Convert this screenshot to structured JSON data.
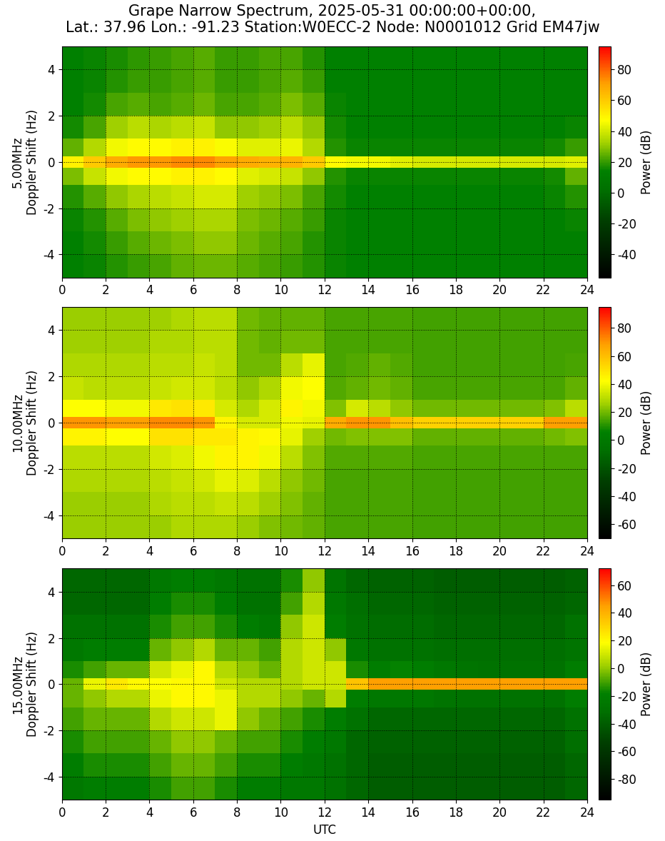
{
  "title": "Grape Narrow Spectrum, 2025-05-31 00:00:00+00:00,\nLat.: 37.96 Lon.: -91.23 Station:W0ECC-2 Node: N0001012 Grid EM47jw",
  "chart_data": [
    {
      "type": "heatmap",
      "ylabel": "5.00MHz\nDoppler Shift (Hz)",
      "xlim": [
        0,
        24
      ],
      "xticks": [
        0,
        2,
        4,
        6,
        8,
        10,
        12,
        14,
        16,
        18,
        20,
        22,
        24
      ],
      "ylim": [
        -5,
        5
      ],
      "yticks": [
        -4,
        -2,
        0,
        2,
        4
      ],
      "grid": true,
      "x_edges": [
        0,
        1,
        2,
        3,
        4,
        5,
        6,
        7,
        8,
        9,
        10,
        11,
        12,
        13,
        14,
        15,
        16,
        17,
        18,
        19,
        20,
        21,
        22,
        23,
        24
      ],
      "y_edges": [
        -5,
        -4,
        -3,
        -2,
        -1,
        -0.25,
        0.25,
        1,
        2,
        3,
        4,
        5
      ],
      "cells": [
        [
          14,
          15,
          18,
          20,
          22,
          25,
          26,
          26,
          24,
          22,
          20,
          18,
          15,
          14,
          14,
          14,
          14,
          14,
          14,
          14,
          14,
          14,
          14,
          14
        ],
        [
          14,
          16,
          20,
          24,
          26,
          28,
          30,
          30,
          26,
          24,
          22,
          18,
          15,
          14,
          14,
          14,
          14,
          14,
          14,
          14,
          14,
          14,
          14,
          14
        ],
        [
          15,
          18,
          24,
          28,
          30,
          32,
          34,
          34,
          28,
          26,
          24,
          20,
          15,
          14,
          14,
          14,
          14,
          14,
          14,
          14,
          14,
          14,
          14,
          15
        ],
        [
          18,
          24,
          30,
          34,
          36,
          38,
          40,
          40,
          32,
          30,
          28,
          22,
          16,
          14,
          14,
          14,
          14,
          14,
          14,
          14,
          14,
          14,
          15,
          18
        ],
        [
          28,
          38,
          45,
          48,
          48,
          50,
          50,
          48,
          42,
          40,
          38,
          30,
          18,
          15,
          15,
          15,
          15,
          15,
          15,
          15,
          15,
          15,
          16,
          25
        ],
        [
          50,
          60,
          68,
          72,
          72,
          74,
          74,
          70,
          68,
          66,
          66,
          60,
          48,
          45,
          45,
          42,
          40,
          40,
          40,
          40,
          40,
          40,
          40,
          42
        ],
        [
          25,
          35,
          45,
          48,
          48,
          50,
          50,
          46,
          42,
          42,
          44,
          35,
          18,
          15,
          15,
          15,
          15,
          15,
          15,
          15,
          15,
          15,
          16,
          20
        ],
        [
          16,
          22,
          32,
          36,
          34,
          36,
          38,
          30,
          30,
          32,
          36,
          30,
          16,
          14,
          14,
          14,
          14,
          14,
          14,
          14,
          14,
          14,
          14,
          15
        ],
        [
          14,
          16,
          22,
          24,
          22,
          24,
          26,
          22,
          22,
          24,
          28,
          24,
          15,
          14,
          14,
          14,
          14,
          14,
          14,
          14,
          14,
          14,
          14,
          14
        ],
        [
          14,
          15,
          18,
          20,
          20,
          22,
          24,
          20,
          20,
          22,
          24,
          20,
          14,
          14,
          14,
          14,
          14,
          14,
          14,
          14,
          14,
          14,
          14,
          14
        ],
        [
          14,
          15,
          17,
          19,
          20,
          22,
          24,
          20,
          20,
          22,
          22,
          18,
          14,
          14,
          14,
          14,
          14,
          14,
          14,
          14,
          14,
          14,
          14,
          14
        ]
      ],
      "colorbar_range": [
        -55,
        95
      ],
      "colorbar_ticks": [
        -40,
        -20,
        0,
        20,
        40,
        60,
        80
      ],
      "colorbar_label": "Power (dB)"
    },
    {
      "type": "heatmap",
      "ylabel": "10.00MHz\nDoppler Shift (Hz)",
      "xlim": [
        0,
        24
      ],
      "xticks": [
        0,
        2,
        4,
        6,
        8,
        10,
        12,
        14,
        16,
        18,
        20,
        22,
        24
      ],
      "ylim": [
        -5,
        5
      ],
      "yticks": [
        -4,
        -2,
        0,
        2,
        4
      ],
      "grid": true,
      "x_edges": [
        0,
        1,
        2,
        3,
        4,
        5,
        6,
        7,
        8,
        9,
        10,
        11,
        12,
        13,
        14,
        15,
        16,
        17,
        18,
        19,
        20,
        21,
        22,
        23,
        24
      ],
      "y_edges": [
        -5,
        -4,
        -3,
        -2,
        -1,
        -0.25,
        0.25,
        1,
        2,
        3,
        4,
        5
      ],
      "cells": [
        [
          25,
          25,
          25,
          25,
          25,
          28,
          28,
          28,
          25,
          22,
          20,
          18,
          15,
          15,
          15,
          15,
          14,
          14,
          14,
          14,
          14,
          14,
          14,
          14
        ],
        [
          25,
          25,
          25,
          25,
          28,
          30,
          30,
          32,
          30,
          26,
          22,
          18,
          15,
          15,
          15,
          15,
          14,
          14,
          14,
          14,
          14,
          14,
          14,
          14
        ],
        [
          28,
          28,
          28,
          28,
          30,
          32,
          34,
          38,
          36,
          30,
          24,
          20,
          15,
          15,
          15,
          15,
          14,
          14,
          14,
          14,
          14,
          14,
          14,
          14
        ],
        [
          30,
          30,
          30,
          30,
          34,
          36,
          40,
          45,
          45,
          40,
          30,
          22,
          16,
          16,
          16,
          16,
          15,
          15,
          15,
          15,
          15,
          15,
          15,
          15
        ],
        [
          45,
          45,
          42,
          42,
          50,
          50,
          48,
          48,
          45,
          44,
          38,
          26,
          20,
          22,
          22,
          22,
          18,
          18,
          18,
          18,
          18,
          18,
          20,
          22
        ],
        [
          70,
          70,
          68,
          68,
          72,
          72,
          70,
          45,
          35,
          35,
          40,
          38,
          65,
          70,
          70,
          60,
          55,
          55,
          55,
          55,
          55,
          55,
          68,
          68
        ],
        [
          42,
          42,
          40,
          40,
          48,
          50,
          48,
          35,
          28,
          35,
          45,
          40,
          22,
          35,
          30,
          24,
          20,
          20,
          20,
          20,
          20,
          20,
          22,
          30
        ],
        [
          32,
          30,
          30,
          30,
          32,
          34,
          34,
          30,
          24,
          28,
          40,
          42,
          16,
          18,
          20,
          18,
          15,
          15,
          15,
          15,
          15,
          15,
          15,
          18
        ],
        [
          28,
          28,
          28,
          28,
          30,
          30,
          32,
          30,
          20,
          20,
          30,
          38,
          15,
          16,
          18,
          16,
          14,
          14,
          14,
          14,
          14,
          14,
          14,
          15
        ],
        [
          26,
          26,
          26,
          26,
          28,
          28,
          30,
          30,
          20,
          18,
          20,
          20,
          15,
          15,
          15,
          15,
          14,
          14,
          14,
          14,
          14,
          14,
          14,
          14
        ],
        [
          25,
          25,
          25,
          25,
          26,
          28,
          30,
          30,
          20,
          18,
          18,
          18,
          15,
          15,
          15,
          15,
          14,
          14,
          14,
          14,
          14,
          14,
          14,
          14
        ]
      ],
      "colorbar_range": [
        -70,
        95
      ],
      "colorbar_ticks": [
        -60,
        -40,
        -20,
        0,
        20,
        40,
        60,
        80
      ],
      "colorbar_label": "Power (dB)"
    },
    {
      "type": "heatmap",
      "ylabel": "15.00MHz\nDoppler Shift (Hz)",
      "xlabel": "UTC",
      "xlim": [
        0,
        24
      ],
      "xticks": [
        0,
        2,
        4,
        6,
        8,
        10,
        12,
        14,
        16,
        18,
        20,
        22,
        24
      ],
      "ylim": [
        -5,
        5
      ],
      "yticks": [
        -4,
        -2,
        0,
        2,
        4
      ],
      "grid": true,
      "x_edges": [
        0,
        1,
        2,
        3,
        4,
        5,
        6,
        7,
        8,
        9,
        10,
        11,
        12,
        13,
        14,
        15,
        16,
        17,
        18,
        19,
        20,
        21,
        22,
        23,
        24
      ],
      "y_edges": [
        -5,
        -4,
        -3,
        -2,
        -1,
        -0.25,
        0.25,
        1,
        2,
        3,
        4,
        5
      ],
      "cells": [
        [
          -25,
          -20,
          -20,
          -20,
          -15,
          -10,
          -10,
          -15,
          -20,
          -20,
          -25,
          -25,
          -30,
          -35,
          -40,
          -40,
          -40,
          -40,
          -40,
          -40,
          -40,
          -40,
          -40,
          -35
        ],
        [
          -20,
          -15,
          -15,
          -15,
          -10,
          -5,
          -5,
          -10,
          -15,
          -15,
          -20,
          -25,
          -30,
          -35,
          -40,
          -40,
          -40,
          -40,
          -40,
          -40,
          -40,
          -40,
          -40,
          -35
        ],
        [
          -15,
          -10,
          -10,
          -10,
          -5,
          0,
          0,
          -5,
          -10,
          -10,
          -15,
          -20,
          -25,
          -35,
          -38,
          -38,
          -38,
          -38,
          -38,
          -38,
          -38,
          -38,
          -38,
          -32
        ],
        [
          -10,
          -5,
          -5,
          -5,
          5,
          10,
          10,
          15,
          0,
          -5,
          -10,
          -15,
          -20,
          -30,
          -35,
          -35,
          -35,
          -35,
          -35,
          -35,
          -35,
          -35,
          -35,
          -30
        ],
        [
          -5,
          0,
          5,
          5,
          15,
          20,
          20,
          15,
          5,
          5,
          0,
          -5,
          5,
          -20,
          -25,
          -25,
          -25,
          -28,
          -30,
          -30,
          -30,
          -30,
          -30,
          -20
        ],
        [
          -5,
          15,
          25,
          20,
          18,
          20,
          20,
          10,
          5,
          5,
          5,
          10,
          10,
          35,
          45,
          45,
          45,
          45,
          45,
          45,
          45,
          45,
          45,
          45
        ],
        [
          -15,
          -10,
          -5,
          -5,
          10,
          15,
          20,
          5,
          0,
          -5,
          5,
          10,
          10,
          -15,
          -20,
          -18,
          -20,
          -25,
          -28,
          -30,
          -30,
          -30,
          -30,
          -20
        ],
        [
          -25,
          -20,
          -20,
          -20,
          -5,
          0,
          5,
          -5,
          -5,
          -10,
          5,
          10,
          0,
          -25,
          -30,
          -30,
          -30,
          -32,
          -32,
          -32,
          -32,
          -32,
          -32,
          -28
        ],
        [
          -30,
          -30,
          -30,
          -30,
          -15,
          -10,
          -10,
          -15,
          -20,
          -25,
          0,
          10,
          -20,
          -30,
          -33,
          -33,
          -33,
          -35,
          -35,
          -35,
          -35,
          -35,
          -35,
          -30
        ],
        [
          -35,
          -35,
          -35,
          -35,
          -20,
          -15,
          -15,
          -20,
          -30,
          -30,
          -10,
          5,
          -25,
          -32,
          -35,
          -35,
          -35,
          -38,
          -38,
          -38,
          -38,
          -38,
          -38,
          -35
        ],
        [
          -35,
          -35,
          -35,
          -35,
          -25,
          -20,
          -20,
          -25,
          -30,
          -30,
          -15,
          0,
          -28,
          -35,
          -38,
          -38,
          -38,
          -40,
          -40,
          -40,
          -40,
          -40,
          -40,
          -38
        ]
      ],
      "colorbar_range": [
        -95,
        72
      ],
      "colorbar_ticks": [
        -80,
        -60,
        -40,
        -20,
        0,
        20,
        40,
        60
      ],
      "colorbar_label": "Power (dB)"
    }
  ]
}
